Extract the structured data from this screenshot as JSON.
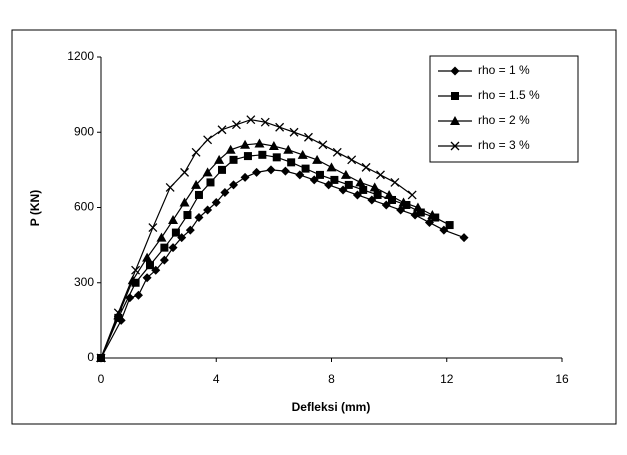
{
  "chart_data": {
    "type": "line",
    "x_label": "Defleksi (mm)",
    "y_label": "P (KN)",
    "xlim": [
      0,
      16
    ],
    "xticks": [
      0,
      4,
      8,
      12,
      16
    ],
    "ylim": [
      0,
      1200
    ],
    "yticks": [
      0,
      300,
      600,
      900,
      1200
    ],
    "grid": false,
    "legend": "upper right",
    "series": [
      {
        "name": "rho = 1 %",
        "color": "#000000",
        "marker": "diamond",
        "x": [
          0,
          0.7,
          1.0,
          1.3,
          1.6,
          1.9,
          2.2,
          2.5,
          2.8,
          3.1,
          3.4,
          3.7,
          4.0,
          4.3,
          4.6,
          5.0,
          5.4,
          5.9,
          6.4,
          6.9,
          7.4,
          7.9,
          8.4,
          8.9,
          9.4,
          9.9,
          10.4,
          10.9,
          11.4,
          11.9,
          12.6
        ],
        "values": [
          0,
          150,
          240,
          250,
          320,
          350,
          390,
          440,
          480,
          510,
          560,
          590,
          620,
          660,
          690,
          720,
          740,
          750,
          745,
          730,
          710,
          690,
          670,
          650,
          630,
          610,
          590,
          570,
          540,
          510,
          480
        ]
      },
      {
        "name": "rho = 1.5 %",
        "color": "#000000",
        "marker": "square",
        "x": [
          0,
          0.6,
          1.2,
          1.7,
          2.2,
          2.6,
          3.0,
          3.4,
          3.8,
          4.2,
          4.6,
          5.1,
          5.6,
          6.1,
          6.6,
          7.1,
          7.6,
          8.1,
          8.6,
          9.1,
          9.6,
          10.1,
          10.6,
          11.1,
          11.6,
          12.1
        ],
        "values": [
          0,
          160,
          300,
          370,
          440,
          500,
          570,
          650,
          700,
          750,
          790,
          805,
          810,
          800,
          780,
          755,
          730,
          710,
          690,
          670,
          650,
          630,
          610,
          580,
          560,
          530
        ]
      },
      {
        "name": "rho = 2 %",
        "color": "#000000",
        "marker": "triangle",
        "x": [
          0,
          0.6,
          1.1,
          1.6,
          2.1,
          2.5,
          2.9,
          3.3,
          3.7,
          4.1,
          4.5,
          5.0,
          5.5,
          6.0,
          6.5,
          7.0,
          7.5,
          8.0,
          8.5,
          9.0,
          9.5,
          10.0,
          10.5,
          11.0,
          11.5
        ],
        "values": [
          0,
          170,
          310,
          400,
          480,
          550,
          620,
          690,
          740,
          790,
          830,
          850,
          855,
          845,
          830,
          810,
          790,
          760,
          730,
          700,
          680,
          650,
          620,
          600,
          570
        ]
      },
      {
        "name": "rho = 3 %",
        "color": "#000000",
        "marker": "x",
        "x": [
          0,
          0.6,
          1.2,
          1.8,
          2.4,
          2.9,
          3.3,
          3.7,
          4.2,
          4.7,
          5.2,
          5.7,
          6.2,
          6.7,
          7.2,
          7.7,
          8.2,
          8.7,
          9.2,
          9.7,
          10.2,
          10.8
        ],
        "values": [
          0,
          180,
          350,
          520,
          680,
          740,
          820,
          870,
          910,
          930,
          950,
          940,
          920,
          900,
          880,
          850,
          820,
          790,
          760,
          730,
          700,
          650
        ]
      }
    ]
  }
}
